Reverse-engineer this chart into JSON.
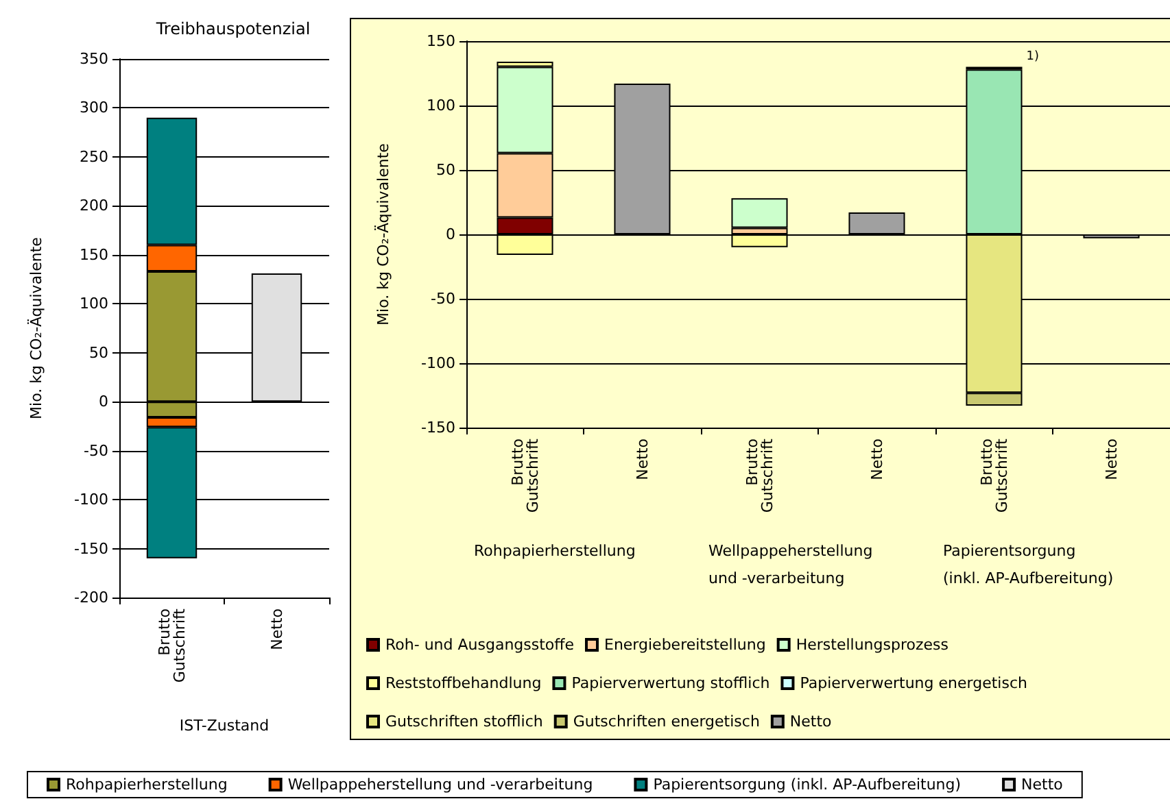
{
  "chart_data": [
    {
      "type": "bar",
      "title": "Treibhauspotenzial",
      "ylabel": "Mio. kg CO₂-Äquivalente",
      "xlabel": "IST-Zustand",
      "categories": [
        "Brutto\nGutschrift",
        "Netto"
      ],
      "stacked": true,
      "ylim": [
        -200,
        350
      ],
      "yticks": [
        -200,
        -150,
        -100,
        -50,
        0,
        50,
        100,
        150,
        200,
        250,
        300,
        350
      ],
      "grid": "y",
      "legend": "bottom",
      "series": [
        {
          "name": "Rohpapierherstellung",
          "color": "#999933",
          "values": [
            133,
            null
          ]
        },
        {
          "color": "#999933",
          "values": [
            -16,
            null
          ]
        },
        {
          "name": "Wellpappeherstellung und -verarbeitung",
          "color": "#ff6600",
          "values": [
            27,
            null
          ]
        },
        {
          "color": "#ff6600",
          "values": [
            -10,
            null
          ]
        },
        {
          "name": "Papierentsorgung (inkl. AP-Aufbereitung)",
          "color": "#008080",
          "values": [
            130,
            null
          ]
        },
        {
          "color": "#008080",
          "values": [
            -134,
            null
          ]
        },
        {
          "name": "Netto",
          "color": "#e0e0e0",
          "values": [
            null,
            131
          ]
        }
      ]
    },
    {
      "type": "bar",
      "ylabel": "Mio. kg CO₂-Äquivalente",
      "categories": [
        "Brutto\nGutschrift",
        "Netto",
        "Brutto\nGutschrift",
        "Netto",
        "Brutto\nGutschrift",
        "Netto"
      ],
      "stacked": true,
      "ylim": [
        -150,
        150
      ],
      "yticks": [
        -150,
        -100,
        -50,
        0,
        50,
        100,
        150
      ],
      "grid": "y",
      "legend": "bottom",
      "annotations": [
        "Rohpapierherstellung",
        "Wellpappeherstellung\nund -verarbeitung",
        "Papierentsorgung\n(inkl. AP-Aufbereitung)",
        "1)"
      ],
      "series": [
        {
          "name": "Roh- und Ausgangsstoffe",
          "color": "#800000",
          "values": [
            13,
            null,
            null,
            null,
            null,
            null
          ]
        },
        {
          "name": "Energiebereitstellung",
          "color": "#ffcc99",
          "values": [
            50,
            null,
            5,
            null,
            null,
            null
          ]
        },
        {
          "name": "Herstellungsprozess",
          "color": "#ccffcc",
          "values": [
            67,
            null,
            23,
            null,
            null,
            null
          ]
        },
        {
          "name": "Reststoffbehandlung",
          "color": "#ffff99",
          "values": [
            4,
            null,
            null,
            null,
            null,
            null
          ]
        },
        {
          "color": "#ffff99",
          "values": [
            -16,
            null,
            -10,
            null,
            null,
            null
          ]
        },
        {
          "name": "Papierverwertung stofflich",
          "color": "#99e6b3",
          "values": [
            null,
            null,
            null,
            null,
            128,
            null
          ]
        },
        {
          "name": "Papierverwertung energetisch",
          "color": "#ccffff",
          "values": [
            null,
            null,
            null,
            null,
            2,
            null
          ]
        },
        {
          "name": "Gutschriften stofflich",
          "color": "#e6e680",
          "values": [
            null,
            null,
            null,
            null,
            -123,
            null
          ]
        },
        {
          "name": "Gutschriften energetisch",
          "color": "#c8c870",
          "values": [
            null,
            null,
            null,
            null,
            -10,
            null
          ]
        },
        {
          "name": "Netto",
          "color": "#a0a0a0",
          "values": [
            null,
            117,
            null,
            17,
            null,
            -3
          ]
        }
      ]
    }
  ]
}
